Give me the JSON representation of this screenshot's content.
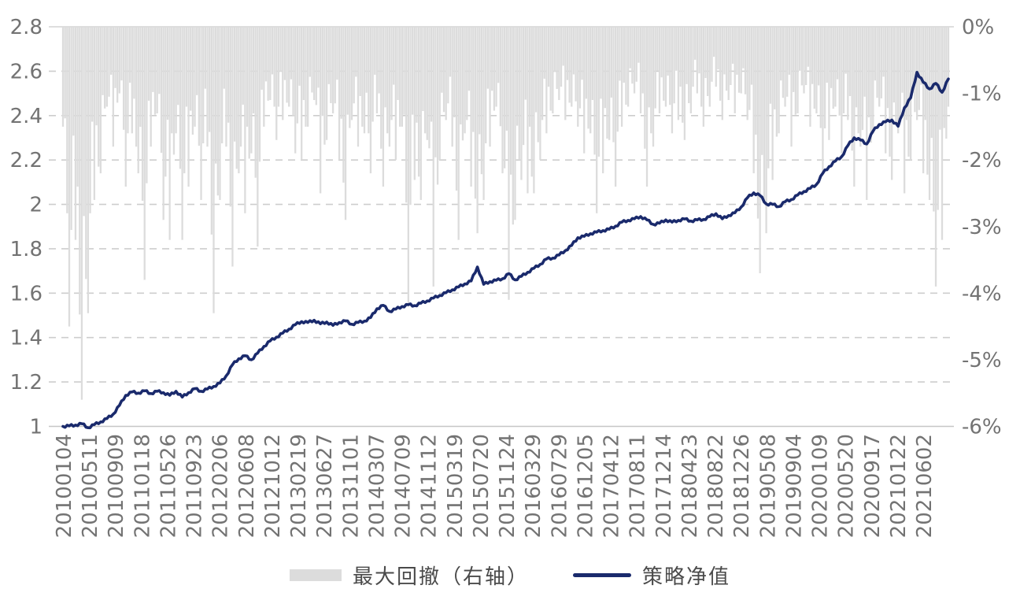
{
  "colors": {
    "background": "#FFFFFF",
    "nav_line": "#1A2A6C",
    "drawdown_fill": "#DCDCDC",
    "axis_text": "#737373",
    "gridline_dashed": "#CDCDCD",
    "baseline": "#C6C6C6",
    "topline": "#D4D4D4",
    "legend_text": "#4A4A4A"
  },
  "chart_data": {
    "type": "line",
    "title": "",
    "x_tick_labels": [
      "20100104",
      "20100511",
      "20100909",
      "20110118",
      "20110526",
      "20110923",
      "20120206",
      "20120608",
      "20121012",
      "20130219",
      "20130627",
      "20131101",
      "20140307",
      "20140709",
      "20141112",
      "20150319",
      "20150720",
      "20151124",
      "20160329",
      "20160729",
      "20161205",
      "20170412",
      "20170811",
      "20171214",
      "20180423",
      "20180822",
      "20181226",
      "20190508",
      "20190904",
      "20200109",
      "20200520",
      "20200917",
      "20210122",
      "20210602"
    ],
    "left_axis": {
      "ticks": [
        "2.8",
        "2.6",
        "2.4",
        "2.2",
        "2",
        "1.8",
        "1.6",
        "1.4",
        "1.2",
        "1"
      ],
      "tick_values": [
        2.8,
        2.6,
        2.4,
        2.2,
        2.0,
        1.8,
        1.6,
        1.4,
        1.2,
        1.0
      ],
      "range": [
        1.0,
        2.8
      ],
      "applies_to": "策略净值"
    },
    "right_axis": {
      "ticks": [
        "0%",
        "-1%",
        "-2%",
        "-3%",
        "-4%",
        "-5%",
        "-6%"
      ],
      "tick_values": [
        0,
        -1,
        -2,
        -3,
        -4,
        -5,
        -6
      ],
      "range": [
        -6,
        0
      ],
      "applies_to": "最大回撤"
    },
    "grid": {
      "dashed_levels": [
        2.6,
        2.4,
        2.2,
        2.0,
        1.8,
        1.6,
        1.4,
        1.2
      ],
      "solid_levels": [
        2.8,
        1.0
      ],
      "dashes": "on"
    },
    "sampling": {
      "start": "2010-01",
      "end": "2021-10",
      "interval": "monthly"
    },
    "series": [
      {
        "name": "最大回撤（右轴）",
        "type": "area",
        "axis": "right",
        "unit": "%",
        "color": "#DCDCDC",
        "values": [
          -1.5,
          -4.5,
          -3.2,
          -5.6,
          -4.3,
          -2.6,
          -2.2,
          -1.2,
          -1.8,
          -1.0,
          -2.4,
          -1.6,
          -2.2,
          -3.8,
          -1.8,
          -1.3,
          -2.9,
          -3.2,
          -1.6,
          -3.2,
          -2.4,
          -1.5,
          -2.6,
          -1.8,
          -4.3,
          -2.6,
          -1.8,
          -3.6,
          -2.2,
          -2.8,
          -1.9,
          -3.3,
          -1.5,
          -1.1,
          -1.7,
          -1.4,
          -1.2,
          -1.9,
          -2.0,
          -1.5,
          -1.1,
          -2.5,
          -1.7,
          -1.3,
          -2.0,
          -2.9,
          -1.4,
          -1.8,
          -1.6,
          -2.2,
          -1.3,
          -2.4,
          -1.8,
          -2.0,
          -1.5,
          -4.2,
          -2.3,
          -2.6,
          -1.7,
          -3.9,
          -2.0,
          -1.4,
          -1.8,
          -3.2,
          -1.6,
          -2.4,
          -3.1,
          -2.6,
          -1.8,
          -1.2,
          -2.2,
          -4.1,
          -2.9,
          -2.3,
          -2.5,
          -2.5,
          -2.0,
          -1.6,
          -1.3,
          -1.1,
          -1.4,
          -1.2,
          -1.5,
          -1.9,
          -1.6,
          -2.8,
          -2.2,
          -1.7,
          -2.4,
          -1.5,
          -1.2,
          -1.0,
          -1.3,
          -2.4,
          -1.8,
          -1.3,
          -1.2,
          -1.6,
          -1.4,
          -1.7,
          -1.3,
          -1.0,
          -1.5,
          -1.2,
          -0.9,
          -1.4,
          -1.1,
          -1.3,
          -1.0,
          -1.4,
          -2.2,
          -3.7,
          -3.1,
          -2.3,
          -1.6,
          -1.2,
          -1.8,
          -1.3,
          -1.0,
          -1.5,
          -1.3,
          -2.2,
          -1.7,
          -1.2,
          -1.9,
          -1.4,
          -2.4,
          -1.8,
          -2.6,
          -1.6,
          -1.2,
          -1.9,
          -2.3,
          -1.6,
          -2.5,
          -2.0,
          -1.4,
          -2.2,
          -2.6,
          -3.9,
          -3.2,
          -1.2
        ]
      },
      {
        "name": "策略净值",
        "type": "line",
        "axis": "left",
        "color": "#1A2A6C",
        "values": [
          1.0,
          1.002,
          1.006,
          1.012,
          0.994,
          1.008,
          1.02,
          1.035,
          1.055,
          1.095,
          1.14,
          1.155,
          1.15,
          1.16,
          1.148,
          1.158,
          1.152,
          1.14,
          1.158,
          1.132,
          1.152,
          1.17,
          1.158,
          1.168,
          1.18,
          1.195,
          1.228,
          1.278,
          1.305,
          1.318,
          1.3,
          1.33,
          1.36,
          1.385,
          1.402,
          1.42,
          1.438,
          1.458,
          1.472,
          1.468,
          1.478,
          1.462,
          1.47,
          1.455,
          1.468,
          1.475,
          1.46,
          1.468,
          1.474,
          1.49,
          1.53,
          1.545,
          1.518,
          1.528,
          1.54,
          1.548,
          1.544,
          1.555,
          1.565,
          1.578,
          1.59,
          1.602,
          1.615,
          1.628,
          1.642,
          1.655,
          1.718,
          1.64,
          1.652,
          1.658,
          1.665,
          1.688,
          1.66,
          1.676,
          1.694,
          1.712,
          1.73,
          1.754,
          1.758,
          1.772,
          1.792,
          1.815,
          1.85,
          1.856,
          1.868,
          1.875,
          1.882,
          1.888,
          1.902,
          1.92,
          1.928,
          1.935,
          1.945,
          1.93,
          1.91,
          1.915,
          1.93,
          1.92,
          1.928,
          1.934,
          1.925,
          1.93,
          1.932,
          1.945,
          1.958,
          1.935,
          1.95,
          1.962,
          1.988,
          2.03,
          2.052,
          2.04,
          2.002,
          2.0,
          1.99,
          2.012,
          2.022,
          2.042,
          2.058,
          2.072,
          2.09,
          2.14,
          2.17,
          2.195,
          2.215,
          2.265,
          2.3,
          2.29,
          2.272,
          2.33,
          2.36,
          2.372,
          2.38,
          2.352,
          2.435,
          2.48,
          2.595,
          2.55,
          2.52,
          2.545,
          2.505,
          2.565
        ]
      }
    ],
    "legend": {
      "position": "bottom",
      "items": [
        {
          "label": "最大回撤（右轴）",
          "swatch": "area",
          "color": "#DCDCDC"
        },
        {
          "label": "策略净值",
          "swatch": "line",
          "color": "#1A2A6C"
        }
      ]
    }
  }
}
